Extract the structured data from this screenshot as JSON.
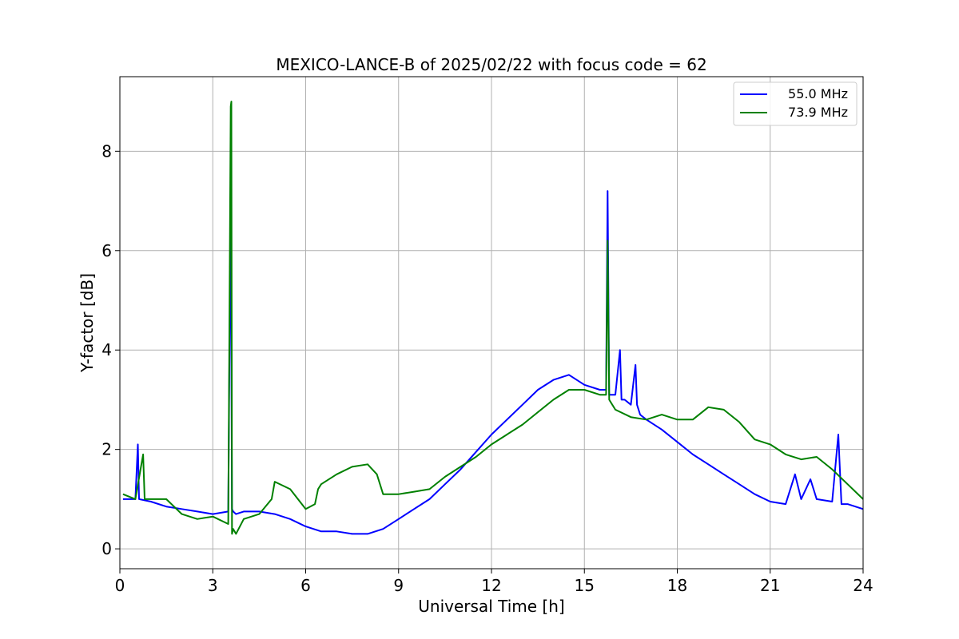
{
  "chart_data": {
    "type": "line",
    "title": "MEXICO-LANCE-B of 2025/02/22 with focus code = 62",
    "xlabel": "Universal Time [h]",
    "ylabel": "Y-factor [dB]",
    "xlim": [
      0,
      24
    ],
    "ylim": [
      -0.4,
      9.5
    ],
    "xticks": [
      0,
      3,
      6,
      9,
      12,
      15,
      18,
      21,
      24
    ],
    "yticks": [
      0,
      2,
      4,
      6,
      8
    ],
    "grid": true,
    "legend_position": "top-right",
    "series": [
      {
        "name": "55.0 MHz",
        "color": "#0000ff",
        "x": [
          0.1,
          0.5,
          0.58,
          0.62,
          1.0,
          1.5,
          2.0,
          2.5,
          3.0,
          3.5,
          3.58,
          3.62,
          3.66,
          3.75,
          4.0,
          4.5,
          5.0,
          5.5,
          6.0,
          6.5,
          7.0,
          7.5,
          8.0,
          8.5,
          9.0,
          9.5,
          10.0,
          10.5,
          11.0,
          11.5,
          12.0,
          12.5,
          13.0,
          13.5,
          14.0,
          14.5,
          15.0,
          15.5,
          15.7,
          15.75,
          15.8,
          16.0,
          16.15,
          16.2,
          16.3,
          16.5,
          16.65,
          16.7,
          16.8,
          17.0,
          17.5,
          18.0,
          18.5,
          19.0,
          19.5,
          20.0,
          20.5,
          21.0,
          21.5,
          21.8,
          22.0,
          22.3,
          22.5,
          23.0,
          23.2,
          23.3,
          23.5,
          24.0
        ],
        "y": [
          1.0,
          1.0,
          2.1,
          1.0,
          0.95,
          0.85,
          0.8,
          0.75,
          0.7,
          0.75,
          7.2,
          0.8,
          0.75,
          0.7,
          0.75,
          0.75,
          0.7,
          0.6,
          0.45,
          0.35,
          0.35,
          0.3,
          0.3,
          0.4,
          0.6,
          0.8,
          1.0,
          1.3,
          1.6,
          1.95,
          2.3,
          2.6,
          2.9,
          3.2,
          3.4,
          3.5,
          3.3,
          3.2,
          3.2,
          7.2,
          3.1,
          3.1,
          4.0,
          3.0,
          3.0,
          2.9,
          3.7,
          2.9,
          2.7,
          2.6,
          2.4,
          2.15,
          1.9,
          1.7,
          1.5,
          1.3,
          1.1,
          0.95,
          0.9,
          1.5,
          1.0,
          1.4,
          1.0,
          0.95,
          2.3,
          0.9,
          0.9,
          0.8
        ]
      },
      {
        "name": "73.9 MHz",
        "color": "#008000",
        "x": [
          0.1,
          0.5,
          0.75,
          0.8,
          1.0,
          1.5,
          2.0,
          2.5,
          3.0,
          3.5,
          3.58,
          3.6,
          3.62,
          3.66,
          3.75,
          4.0,
          4.5,
          4.9,
          5.0,
          5.5,
          6.0,
          6.3,
          6.4,
          6.5,
          7.0,
          7.5,
          8.0,
          8.3,
          8.5,
          9.0,
          9.5,
          10.0,
          10.5,
          11.0,
          11.5,
          12.0,
          12.5,
          13.0,
          13.5,
          14.0,
          14.5,
          15.0,
          15.5,
          15.7,
          15.75,
          15.8,
          16.0,
          16.5,
          17.0,
          17.5,
          18.0,
          18.5,
          19.0,
          19.5,
          20.0,
          20.5,
          21.0,
          21.5,
          22.0,
          22.5,
          23.0,
          23.5,
          24.0
        ],
        "y": [
          1.1,
          1.0,
          1.9,
          1.0,
          1.0,
          1.0,
          0.7,
          0.6,
          0.65,
          0.5,
          8.9,
          9.0,
          0.3,
          0.4,
          0.3,
          0.6,
          0.7,
          1.0,
          1.35,
          1.2,
          0.8,
          0.9,
          1.2,
          1.3,
          1.5,
          1.65,
          1.7,
          1.5,
          1.1,
          1.1,
          1.15,
          1.2,
          1.45,
          1.65,
          1.85,
          2.1,
          2.3,
          2.5,
          2.75,
          3.0,
          3.2,
          3.2,
          3.1,
          3.1,
          6.2,
          3.0,
          2.8,
          2.65,
          2.6,
          2.7,
          2.6,
          2.6,
          2.85,
          2.8,
          2.55,
          2.2,
          2.1,
          1.9,
          1.8,
          1.85,
          1.6,
          1.3,
          1.0
        ]
      }
    ]
  }
}
